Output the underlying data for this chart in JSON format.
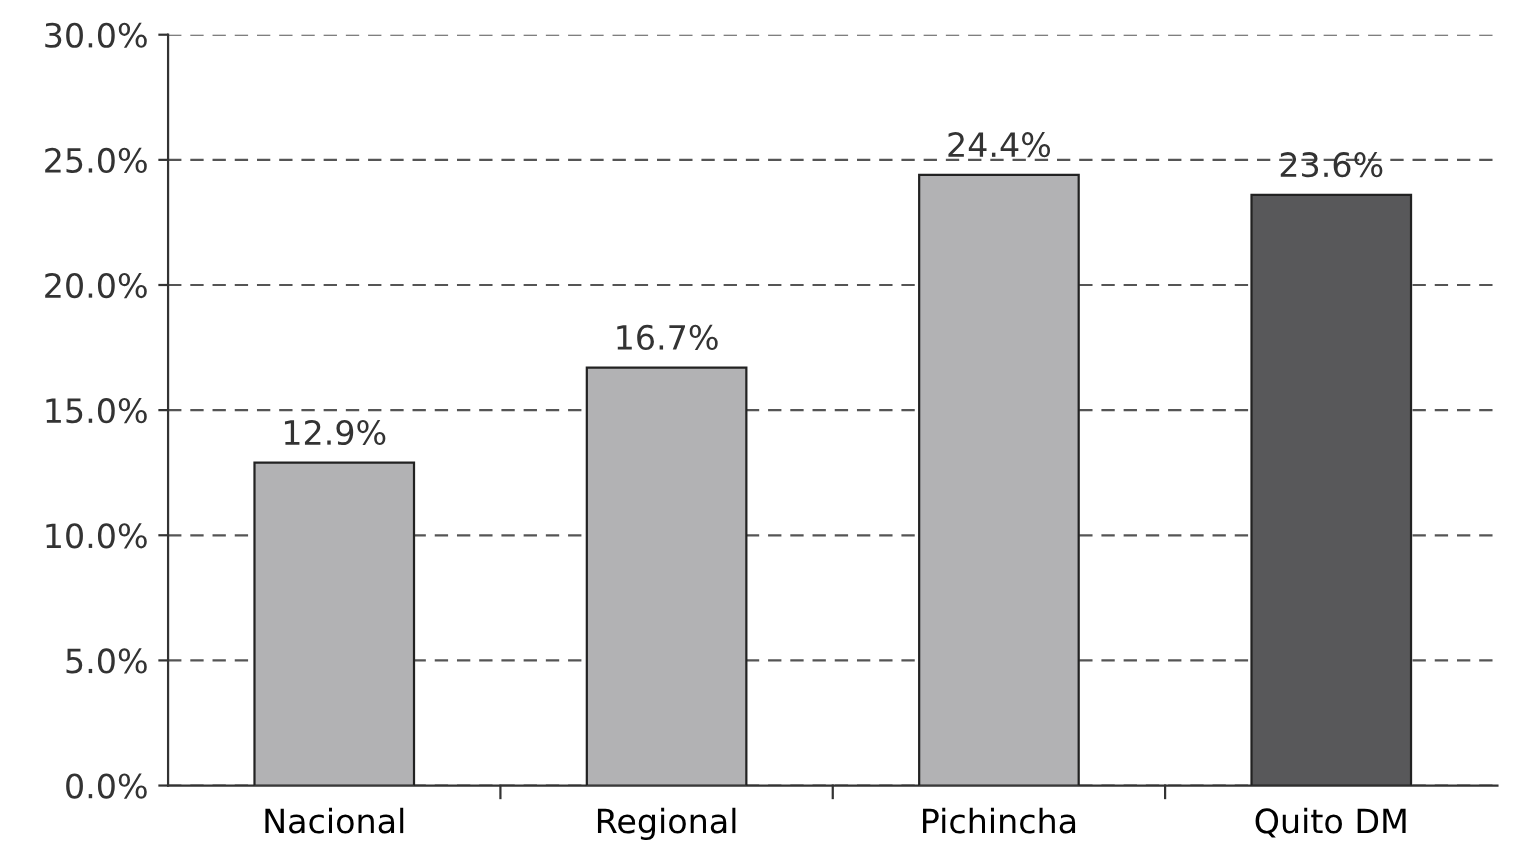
{
  "chart_data": {
    "type": "bar",
    "categories": [
      "Nacional",
      "Regional",
      "Pichincha",
      "Quito DM"
    ],
    "values": [
      12.9,
      16.7,
      24.4,
      23.6
    ],
    "colors": [
      "#b2b2b4",
      "#b2b2b4",
      "#b2b2b4",
      "#58585a"
    ],
    "value_labels": [
      "12.9%",
      "16.7%",
      "24.4%",
      "23.6%"
    ],
    "ylim": [
      0,
      30
    ],
    "yticks": [
      {
        "value": 0,
        "label": "0.0%"
      },
      {
        "value": 5,
        "label": "5.0%"
      },
      {
        "value": 10,
        "label": "10.0%"
      },
      {
        "value": 15,
        "label": "15.0%"
      },
      {
        "value": 20,
        "label": "20.0%"
      },
      {
        "value": 25,
        "label": "25.0%"
      },
      {
        "value": 30,
        "label": "30.0%"
      }
    ],
    "grid": "y"
  }
}
